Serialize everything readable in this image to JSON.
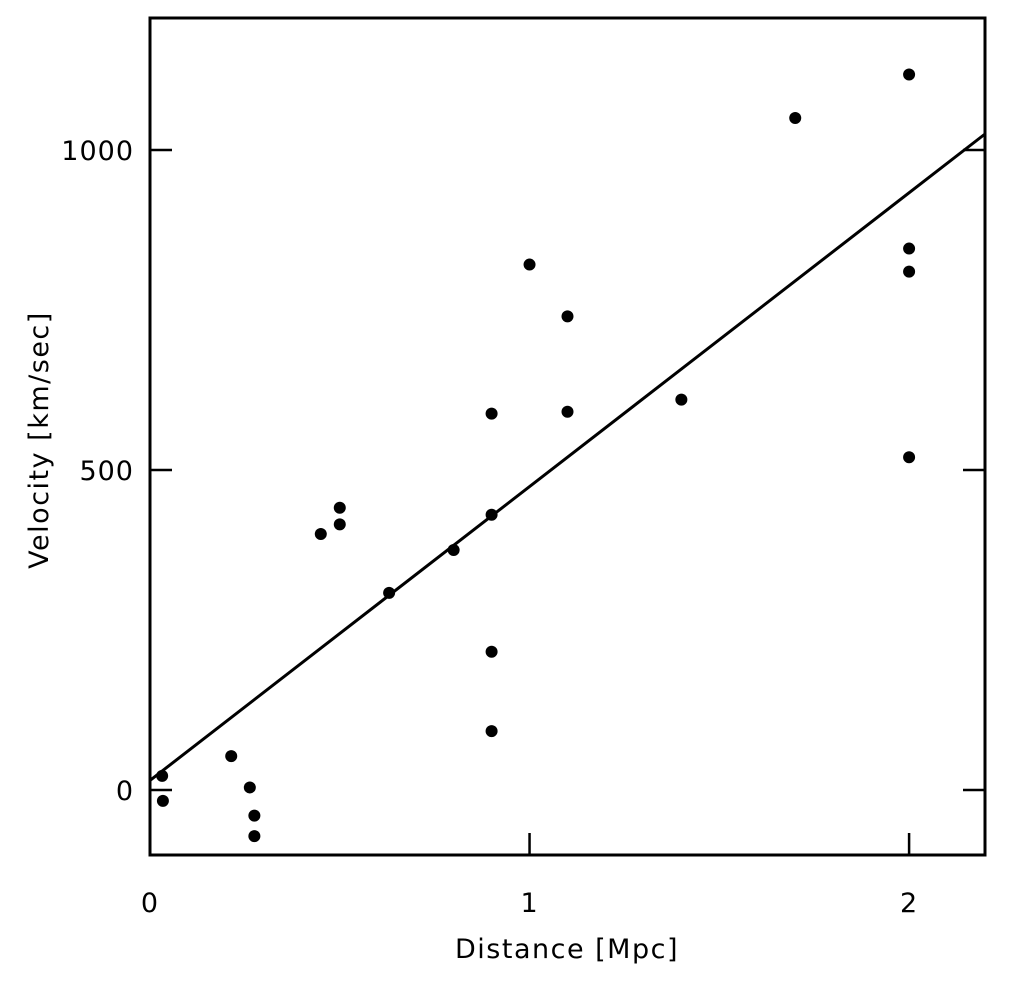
{
  "chart_data": {
    "type": "scatter",
    "title": "",
    "xlabel": "Distance [Mpc]",
    "ylabel": "Velocity [km/sec]",
    "xlim": [
      0,
      2.2
    ],
    "ylim": [
      -100,
      1210
    ],
    "x_ticks": [
      0,
      1,
      2
    ],
    "y_ticks": [
      0,
      500,
      1000
    ],
    "x_tick_labels": [
      "0",
      "1",
      "2"
    ],
    "y_tick_labels": [
      "0",
      "500",
      "1000"
    ],
    "grid": false,
    "legend": "none",
    "series": [
      {
        "points": [
          [
            0.032,
            22
          ],
          [
            0.034,
            -17
          ],
          [
            0.214,
            53
          ],
          [
            0.263,
            4
          ],
          [
            0.275,
            -40
          ],
          [
            0.275,
            -72
          ],
          [
            0.45,
            400
          ],
          [
            0.5,
            441
          ],
          [
            0.5,
            415
          ],
          [
            0.63,
            308
          ],
          [
            0.8,
            375
          ],
          [
            0.9,
            430
          ],
          [
            0.9,
            588
          ],
          [
            0.9,
            216
          ],
          [
            0.9,
            92
          ],
          [
            1.0,
            821
          ],
          [
            1.1,
            740
          ],
          [
            1.1,
            591
          ],
          [
            1.4,
            610
          ],
          [
            1.7,
            1050
          ],
          [
            2.0,
            1118
          ],
          [
            2.0,
            846
          ],
          [
            2.0,
            810
          ],
          [
            2.0,
            520
          ]
        ]
      }
    ],
    "fit_line": {
      "x": [
        0,
        2.2
      ],
      "y": [
        15,
        1025
      ]
    }
  }
}
